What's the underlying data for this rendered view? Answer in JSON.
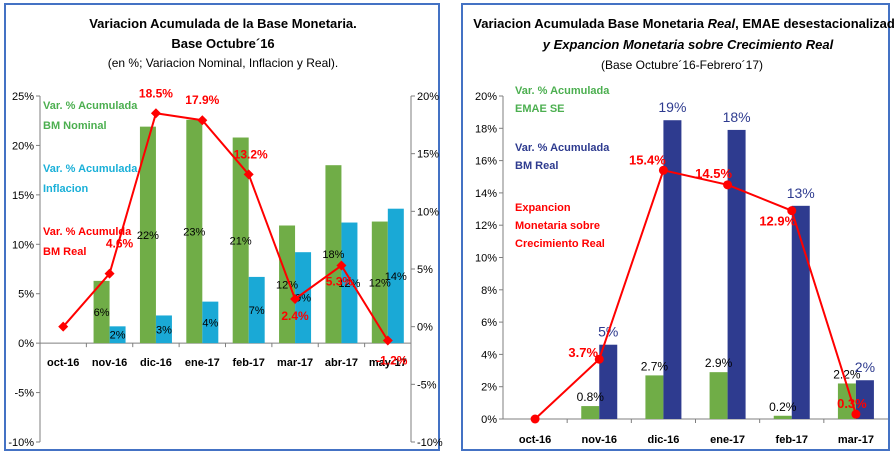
{
  "colors": {
    "green": "#70ad47",
    "cyan": "#1aa9d6",
    "navy": "#2e3b8f",
    "red": "#ff0000",
    "darkred": "#c00000",
    "border": "#4472c4",
    "legendGreen": "#4caf50",
    "legendCyan": "#1ab0d8",
    "legendNavy": "#2e3b8f"
  },
  "chart_data": [
    {
      "type": "bar",
      "title": "Variacion Acumulada de la Base Monetaria.",
      "title2": "Base Octubre´16",
      "subtitle": "(en %; Variacion Nominal, Inflacion y Real).",
      "categories": [
        "oct-16",
        "nov-16",
        "dic-16",
        "ene-17",
        "feb-17",
        "mar-17",
        "abr-17",
        "may-17"
      ],
      "series": [
        {
          "name": "Var. % Acumulada BM Nominal",
          "kind": "bar",
          "axis": "left",
          "color": "#70ad47",
          "values": [
            0,
            6.3,
            21.9,
            22.6,
            20.8,
            11.9,
            18.0,
            12.3
          ],
          "labels": [
            "",
            "6%",
            "22%",
            "23%",
            "21%",
            "12%",
            "18%",
            "12%"
          ]
        },
        {
          "name": "Var. % Acumulada Inflacion",
          "kind": "bar",
          "axis": "left",
          "color": "#1aa9d6",
          "values": [
            0,
            1.7,
            2.8,
            4.2,
            6.7,
            9.2,
            12.2,
            13.6
          ],
          "labels": [
            "",
            "2%",
            "3%",
            "4%",
            "7%",
            "9%",
            "12%",
            "14%"
          ]
        },
        {
          "name": "Var. % Acumulda BM Real",
          "kind": "line",
          "axis": "right",
          "color": "#ff0000",
          "values": [
            0,
            4.6,
            18.5,
            17.9,
            13.2,
            2.4,
            5.3,
            -1.2
          ],
          "labels": [
            "",
            "4.6%",
            "18.5%",
            "17.9%",
            "13.2%",
            "2.4%",
            "5.3%",
            "-1.2%"
          ]
        }
      ],
      "legend": [
        {
          "line1": "Var. % Acumulada",
          "line2": "BM Nominal",
          "color": "#4caf50"
        },
        {
          "line1": "Var. % Acumulada",
          "line2": "Inflacion",
          "color": "#1ab0d8"
        },
        {
          "line1": "Var. % Acumulda",
          "line2": "BM Real",
          "color": "#ff0000"
        }
      ],
      "yleft": {
        "ylim": [
          -10,
          25
        ],
        "ticks": [
          25,
          20,
          15,
          10,
          5,
          0,
          -5,
          -10
        ],
        "tickLabels": [
          "25%",
          "20%",
          "15%",
          "10%",
          "5%",
          "0%",
          "-5%",
          "-10%"
        ]
      },
      "yright": {
        "ylim": [
          -10,
          20
        ],
        "ticks": [
          20,
          15,
          10,
          5,
          0,
          -5,
          -10
        ],
        "tickLabels": [
          "20%",
          "15%",
          "10%",
          "5%",
          "0%",
          "-5%",
          "-10%"
        ]
      },
      "grid": false
    },
    {
      "type": "bar",
      "title_pre": "Variacion Acumulada Base Monetaria ",
      "title_italic": "Real",
      "title_post": ", EMAE desestacionalizado",
      "title2": "y Expancion Monetaria sobre Crecimiento Real",
      "subtitle": "(Base Octubre´16-Febrero´17)",
      "categories": [
        "oct-16",
        "nov-16",
        "dic-16",
        "ene-17",
        "feb-17",
        "mar-17"
      ],
      "series": [
        {
          "name": "Var. % Acumulada EMAE SE",
          "kind": "bar",
          "color": "#70ad47",
          "values": [
            0,
            0.8,
            2.7,
            2.9,
            0.2,
            2.2
          ],
          "labels": [
            "",
            "0.8%",
            "2.7%",
            "2.9%",
            "0.2%",
            "2.2%"
          ]
        },
        {
          "name": "Var. % Acumulada BM Real",
          "kind": "bar",
          "color": "#2e3b8f",
          "values": [
            0,
            4.6,
            18.5,
            17.9,
            13.2,
            2.4
          ],
          "labels": [
            "",
            "5%",
            "19%",
            "18%",
            "13%",
            "2%"
          ]
        },
        {
          "name": "Expancion Monetaria sobre Crecimiento Real",
          "kind": "line",
          "color": "#ff0000",
          "values": [
            0,
            3.7,
            15.4,
            14.5,
            12.9,
            0.3
          ],
          "labels": [
            "",
            "3.7%",
            "15.4%",
            "14.5%",
            "12.9%",
            "0.3%"
          ]
        }
      ],
      "legend": [
        {
          "lines": [
            "Var. % Acumulada",
            "EMAE SE"
          ],
          "color": "#4caf50"
        },
        {
          "lines": [
            "Var. % Acumulada",
            "BM Real"
          ],
          "color": "#2e3b8f"
        },
        {
          "lines": [
            "Expancion",
            "Monetaria sobre",
            "Crecimiento Real"
          ],
          "color": "#ff0000"
        }
      ],
      "yaxis": {
        "ylim": [
          0,
          20
        ],
        "ticks": [
          20,
          18,
          16,
          14,
          12,
          10,
          8,
          6,
          4,
          2,
          0
        ],
        "tickLabels": [
          "20%",
          "18%",
          "16%",
          "14%",
          "12%",
          "10%",
          "8%",
          "6%",
          "4%",
          "2%",
          "0%"
        ]
      },
      "grid": false
    }
  ]
}
